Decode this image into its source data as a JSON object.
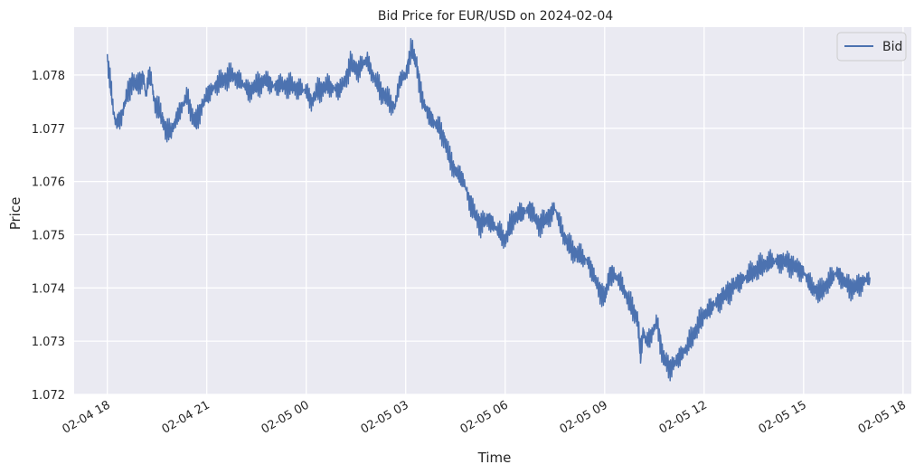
{
  "chart_data": {
    "type": "line",
    "title": "Bid Price for EUR/USD on 2024-02-04",
    "xlabel": "Time",
    "ylabel": "Price",
    "xlim": [
      "2024-02-04 17:00",
      "2024-02-05 18:15"
    ],
    "ylim": [
      1.072,
      1.0789
    ],
    "x_ticks": [
      "02-04 18",
      "02-04 21",
      "02-05 00",
      "02-05 03",
      "02-05 06",
      "02-05 09",
      "02-05 12",
      "02-05 15",
      "02-05 18"
    ],
    "y_ticks": [
      "1.072",
      "1.073",
      "1.074",
      "1.075",
      "1.076",
      "1.077",
      "1.078"
    ],
    "grid": true,
    "legend": {
      "position": "top-right",
      "entries": [
        "Bid"
      ]
    },
    "colors": {
      "plot_background": "#EAEAF2",
      "grid": "#FFFFFF",
      "series": "#4C72B0"
    },
    "series": [
      {
        "name": "Bid",
        "points": [
          [
            "2024-02-04 18:00",
            1.0783
          ],
          [
            "2024-02-04 18:05",
            1.0779
          ],
          [
            "2024-02-04 18:10",
            1.0774
          ],
          [
            "2024-02-04 18:15",
            1.0771
          ],
          [
            "2024-02-04 18:25",
            1.0772
          ],
          [
            "2024-02-04 18:35",
            1.0776
          ],
          [
            "2024-02-04 18:45",
            1.0779
          ],
          [
            "2024-02-04 18:55",
            1.0778
          ],
          [
            "2024-02-04 19:05",
            1.078
          ],
          [
            "2024-02-04 19:10",
            1.0776
          ],
          [
            "2024-02-04 19:15",
            1.078
          ],
          [
            "2024-02-04 19:20",
            1.0779
          ],
          [
            "2024-02-04 19:25",
            1.0775
          ],
          [
            "2024-02-04 19:35",
            1.0773
          ],
          [
            "2024-02-04 19:45",
            1.077
          ],
          [
            "2024-02-04 19:55",
            1.0769
          ],
          [
            "2024-02-04 20:05",
            1.0772
          ],
          [
            "2024-02-04 20:15",
            1.0774
          ],
          [
            "2024-02-04 20:25",
            1.0776
          ],
          [
            "2024-02-04 20:35",
            1.0772
          ],
          [
            "2024-02-04 20:40",
            1.0771
          ],
          [
            "2024-02-04 20:50",
            1.0774
          ],
          [
            "2024-02-04 21:00",
            1.0776
          ],
          [
            "2024-02-04 21:15",
            1.0778
          ],
          [
            "2024-02-04 21:30",
            1.0779
          ],
          [
            "2024-02-04 21:45",
            1.078
          ],
          [
            "2024-02-04 22:00",
            1.0779
          ],
          [
            "2024-02-04 22:15",
            1.0777
          ],
          [
            "2024-02-04 22:30",
            1.0778
          ],
          [
            "2024-02-04 22:45",
            1.0779
          ],
          [
            "2024-02-04 23:00",
            1.0778
          ],
          [
            "2024-02-04 23:30",
            1.0778
          ],
          [
            "2024-02-05 00:00",
            1.0777
          ],
          [
            "2024-02-05 00:10",
            1.0775
          ],
          [
            "2024-02-05 00:20",
            1.0777
          ],
          [
            "2024-02-05 00:40",
            1.0778
          ],
          [
            "2024-02-05 01:00",
            1.0777
          ],
          [
            "2024-02-05 01:10",
            1.0779
          ],
          [
            "2024-02-05 01:20",
            1.0782
          ],
          [
            "2024-02-05 01:35",
            1.0781
          ],
          [
            "2024-02-05 01:50",
            1.0783
          ],
          [
            "2024-02-05 02:00",
            1.078
          ],
          [
            "2024-02-05 02:15",
            1.0777
          ],
          [
            "2024-02-05 02:30",
            1.0775
          ],
          [
            "2024-02-05 02:40",
            1.0774
          ],
          [
            "2024-02-05 02:50",
            1.0779
          ],
          [
            "2024-02-05 03:00",
            1.078
          ],
          [
            "2024-02-05 03:10",
            1.0785
          ],
          [
            "2024-02-05 03:20",
            1.0782
          ],
          [
            "2024-02-05 03:30",
            1.0775
          ],
          [
            "2024-02-05 03:45",
            1.0772
          ],
          [
            "2024-02-05 04:00",
            1.077
          ],
          [
            "2024-02-05 04:10",
            1.0768
          ],
          [
            "2024-02-05 04:20",
            1.0764
          ],
          [
            "2024-02-05 04:30",
            1.0762
          ],
          [
            "2024-02-05 04:45",
            1.076
          ],
          [
            "2024-02-05 05:00",
            1.0755
          ],
          [
            "2024-02-05 05:15",
            1.0752
          ],
          [
            "2024-02-05 05:30",
            1.0753
          ],
          [
            "2024-02-05 05:45",
            1.0751
          ],
          [
            "2024-02-05 06:00",
            1.0749
          ],
          [
            "2024-02-05 06:15",
            1.0753
          ],
          [
            "2024-02-05 06:30",
            1.0754
          ],
          [
            "2024-02-05 06:45",
            1.0755
          ],
          [
            "2024-02-05 07:00",
            1.0752
          ],
          [
            "2024-02-05 07:15",
            1.0753
          ],
          [
            "2024-02-05 07:30",
            1.0755
          ],
          [
            "2024-02-05 07:45",
            1.075
          ],
          [
            "2024-02-05 08:00",
            1.0747
          ],
          [
            "2024-02-05 08:15",
            1.0746
          ],
          [
            "2024-02-05 08:30",
            1.0745
          ],
          [
            "2024-02-05 08:45",
            1.0741
          ],
          [
            "2024-02-05 09:00",
            1.0738
          ],
          [
            "2024-02-05 09:10",
            1.0743
          ],
          [
            "2024-02-05 09:30",
            1.0741
          ],
          [
            "2024-02-05 09:45",
            1.0737
          ],
          [
            "2024-02-05 10:00",
            1.0734
          ],
          [
            "2024-02-05 10:05",
            1.0727
          ],
          [
            "2024-02-05 10:10",
            1.0732
          ],
          [
            "2024-02-05 10:15",
            1.073
          ],
          [
            "2024-02-05 10:25",
            1.0731
          ],
          [
            "2024-02-05 10:35",
            1.0734
          ],
          [
            "2024-02-05 10:45",
            1.0727
          ],
          [
            "2024-02-05 11:00",
            1.0725
          ],
          [
            "2024-02-05 11:15",
            1.0727
          ],
          [
            "2024-02-05 11:30",
            1.0729
          ],
          [
            "2024-02-05 11:45",
            1.0732
          ],
          [
            "2024-02-05 12:00",
            1.0735
          ],
          [
            "2024-02-05 12:30",
            1.0738
          ],
          [
            "2024-02-05 13:00",
            1.0741
          ],
          [
            "2024-02-05 13:30",
            1.0743
          ],
          [
            "2024-02-05 14:00",
            1.0745
          ],
          [
            "2024-02-05 14:30",
            1.0745
          ],
          [
            "2024-02-05 15:00",
            1.0743
          ],
          [
            "2024-02-05 15:15",
            1.074
          ],
          [
            "2024-02-05 15:30",
            1.0739
          ],
          [
            "2024-02-05 15:45",
            1.0741
          ],
          [
            "2024-02-05 16:00",
            1.0743
          ],
          [
            "2024-02-05 16:15",
            1.0741
          ],
          [
            "2024-02-05 16:30",
            1.074
          ],
          [
            "2024-02-05 16:45",
            1.0741
          ],
          [
            "2024-02-05 17:00",
            1.0742
          ]
        ]
      }
    ]
  }
}
